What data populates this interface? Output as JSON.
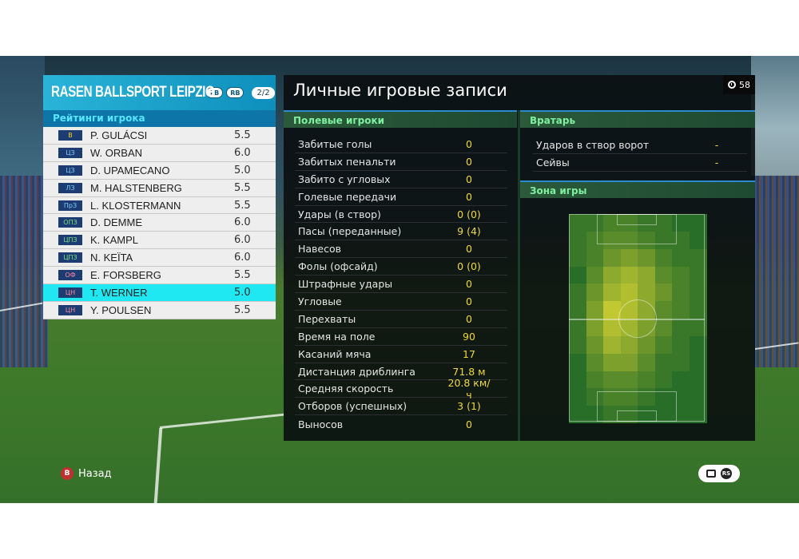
{
  "team": {
    "name": "RASEN BALLSPORT LEIPZIG",
    "btn_lb": "LB",
    "btn_rb": "RB",
    "page": "2/2"
  },
  "ratings_header": "Рейтинги игрока",
  "players": [
    {
      "pos": "В",
      "name": "P. GULÁCSI",
      "rating": "5.5"
    },
    {
      "pos": "ЦЗ",
      "name": "W. ORBAN",
      "rating": "6.0"
    },
    {
      "pos": "ЦЗ",
      "name": "D. UPAMECANO",
      "rating": "5.0"
    },
    {
      "pos": "ЛЗ",
      "name": "M. HALSTENBERG",
      "rating": "5.5"
    },
    {
      "pos": "ПрЗ",
      "name": "L. KLOSTERMANN",
      "rating": "5.5"
    },
    {
      "pos": "ОПЗ",
      "name": "D. DEMME",
      "rating": "6.0"
    },
    {
      "pos": "ЦПЗ",
      "name": "K. KAMPL",
      "rating": "6.0"
    },
    {
      "pos": "ЦПЗ",
      "name": "N. KEÏTA",
      "rating": "6.0"
    },
    {
      "pos": "ОФ",
      "name": "E. FORSBERG",
      "rating": "5.5"
    },
    {
      "pos": "ЦН",
      "name": "T. WERNER",
      "rating": "5.0"
    },
    {
      "pos": "ЦН",
      "name": "Y. POULSEN",
      "rating": "5.5"
    }
  ],
  "main": {
    "title": "Личные игровые записи",
    "timer": "58",
    "field_players_header": "Полевые игроки",
    "goalkeeper_header": "Вратарь",
    "zone_header": "Зона игры"
  },
  "field_stats": [
    {
      "label": "Забитые голы",
      "value": "0"
    },
    {
      "label": "Забитых пенальти",
      "value": "0"
    },
    {
      "label": "Забито с угловых",
      "value": "0"
    },
    {
      "label": "Голевые передачи",
      "value": "0"
    },
    {
      "label": "Удары (в створ)",
      "value": "0 (0)"
    },
    {
      "label": "Пасы (переданные)",
      "value": "9 (4)"
    },
    {
      "label": "Навесов",
      "value": "0"
    },
    {
      "label": "Фолы (офсайд)",
      "value": "0 (0)"
    },
    {
      "label": "Штрафные удары",
      "value": "0"
    },
    {
      "label": "Угловые",
      "value": "0"
    },
    {
      "label": "Перехваты",
      "value": "0"
    },
    {
      "label": "Время на поле",
      "value": "90"
    },
    {
      "label": "Касаний мяча",
      "value": "17"
    },
    {
      "label": "Дистанция дриблинга",
      "value": "71.8 м"
    },
    {
      "label": "Средняя скорость",
      "value": "20.8 км/ч"
    },
    {
      "label": "Отборов (успешных)",
      "value": "3 (1)"
    },
    {
      "label": "Выносов",
      "value": "0"
    }
  ],
  "gk_stats": [
    {
      "label": "Ударов в створ ворот",
      "value": "-"
    },
    {
      "label": "Сейвы",
      "value": "-"
    }
  ],
  "prompts": {
    "back_button": "B",
    "back_label": "Назад",
    "rs_label": "RS"
  },
  "colors": {
    "accent_cyan": "#1fe8f2",
    "value_yellow": "#f0d840",
    "header_green": "#7ef0a0",
    "team_blue": "#2ab4d8"
  }
}
